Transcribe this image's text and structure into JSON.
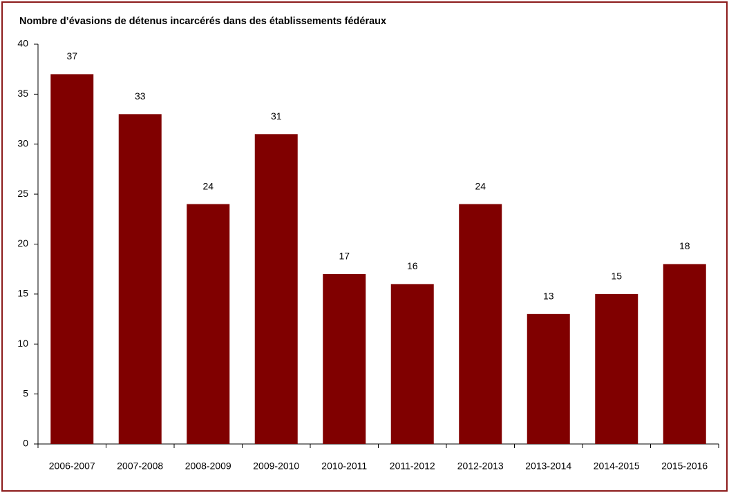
{
  "chart_data": {
    "type": "bar",
    "title": "Nombre d’évasions de détenus incarcérés dans des établissements fédéraux",
    "categories": [
      "2006-2007",
      "2007-2008",
      "2008-2009",
      "2009-2010",
      "2010-2011",
      "2011-2012",
      "2012-2013",
      "2013-2014",
      "2014-2015",
      "2015-2016"
    ],
    "values": [
      37,
      33,
      24,
      31,
      17,
      16,
      24,
      13,
      15,
      18
    ],
    "color": "#800000",
    "ylim": [
      0,
      40
    ],
    "yticks": [
      0,
      5,
      10,
      15,
      20,
      25,
      30,
      35,
      40
    ],
    "grid": false
  }
}
